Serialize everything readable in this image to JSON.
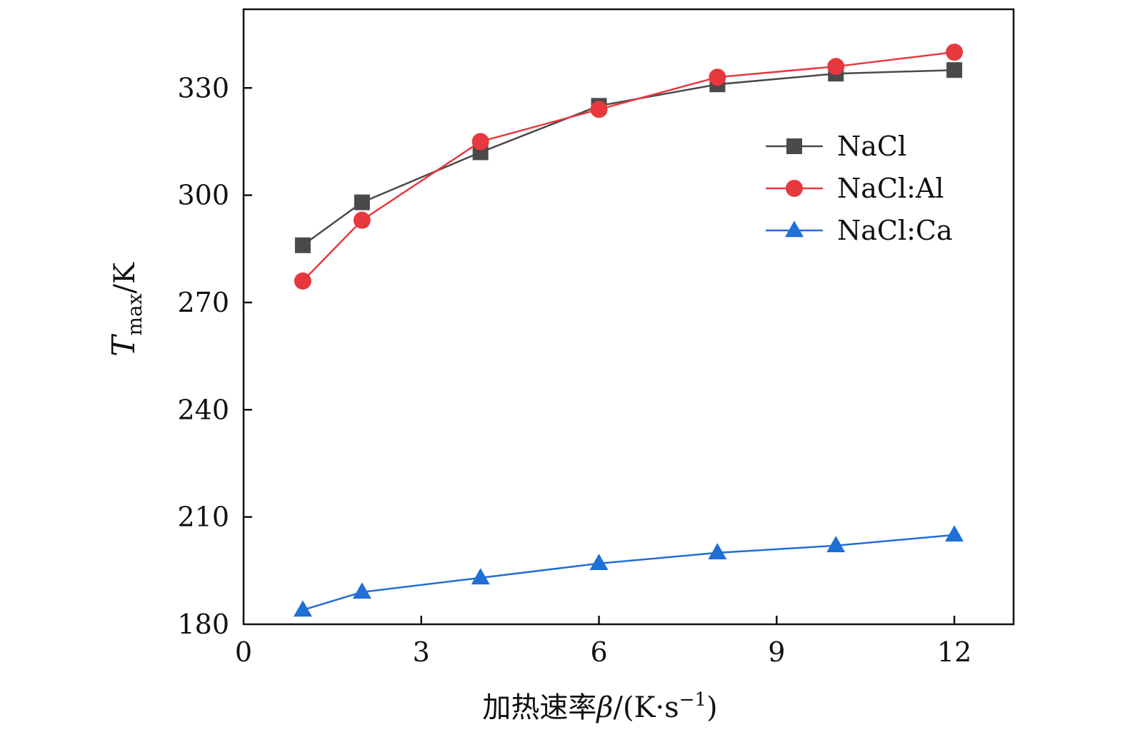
{
  "chart_data": {
    "type": "line",
    "title": "",
    "xlabel": "加热速率β/(K·s⁻¹)",
    "xlabel_parts": {
      "prefix": "加热速率",
      "symbol": "β",
      "unit_open": "/(K·s",
      "superscript": "−1",
      "unit_close": ")"
    },
    "ylabel": "T_max/K",
    "ylabel_parts": {
      "symbol": "T",
      "subscript": "max",
      "unit": "/K"
    },
    "xlim": [
      0,
      13
    ],
    "ylim": [
      180,
      352
    ],
    "xticks": [
      0,
      3,
      6,
      9,
      12
    ],
    "yticks": [
      180,
      210,
      240,
      270,
      300,
      330
    ],
    "grid": false,
    "legend_position": "top-right",
    "series": [
      {
        "name": "NaCl",
        "marker": "square",
        "color": "#4a4a4a",
        "x": [
          1,
          2,
          4,
          6,
          8,
          10,
          12
        ],
        "y": [
          286,
          298,
          312,
          325,
          331,
          334,
          335
        ]
      },
      {
        "name": "NaCl:Al",
        "marker": "circle",
        "color": "#e8383d",
        "x": [
          1,
          2,
          4,
          6,
          8,
          10,
          12
        ],
        "y": [
          276,
          293,
          315,
          324,
          333,
          336,
          340
        ]
      },
      {
        "name": "NaCl:Ca",
        "marker": "triangle",
        "color": "#1f6fd6",
        "x": [
          1,
          2,
          4,
          6,
          8,
          10,
          12
        ],
        "y": [
          184,
          189,
          193,
          197,
          200,
          202,
          205
        ]
      }
    ]
  }
}
